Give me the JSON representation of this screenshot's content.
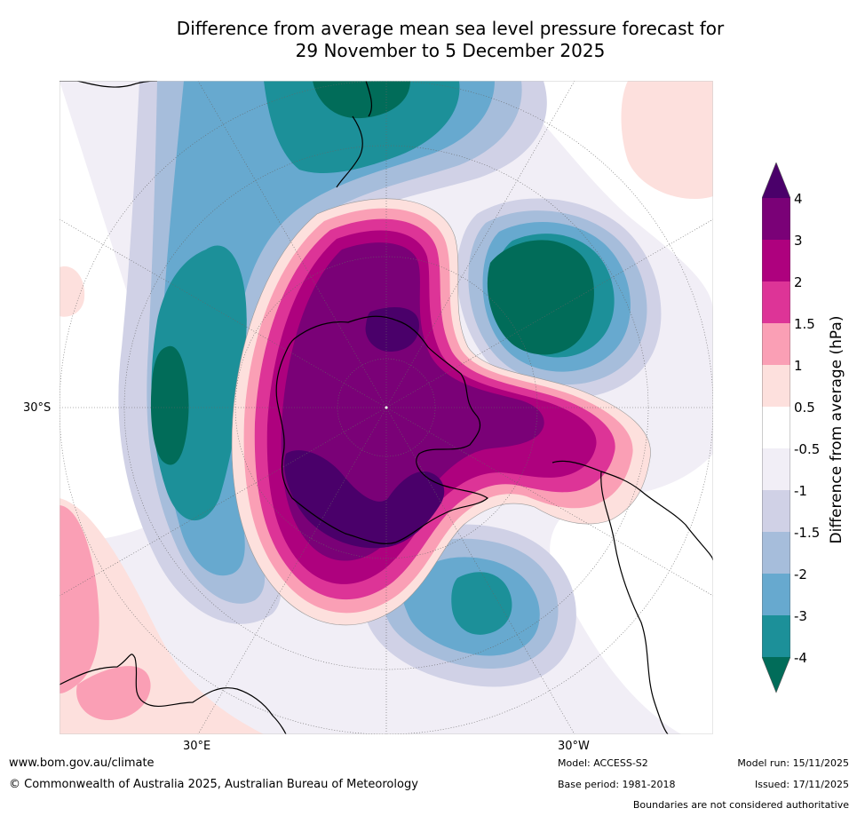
{
  "title": {
    "line1": "Difference from average mean sea level pressure forecast for",
    "line2": "29 November to 5 December 2025"
  },
  "map": {
    "projection": "south-polar-stereographic",
    "latitude_label": "30°S",
    "longitude_labels": [
      "30°E",
      "30°W"
    ]
  },
  "colorbar": {
    "title": "Difference from average (hPa)",
    "ticks": [
      "4",
      "3",
      "2",
      "1.5",
      "1",
      "0.5",
      "-0.5",
      "-1",
      "-1.5",
      "-2",
      "-3",
      "-4"
    ],
    "colors": {
      "gt4": "#4a006a",
      "3_4": "#7a0177",
      "2_3": "#ae017e",
      "1.5_2": "#dd3497",
      "1_1.5": "#fa9fb5",
      "0.5_1": "#fde0dd",
      "-0.5_0.5": "#ffffff",
      "-1_-0.5": "#f1eef6",
      "-1.5_-1": "#d0d1e6",
      "-2_-1.5": "#a6bddb",
      "-3_-2": "#67a9cf",
      "-4_-3": "#1c9099",
      "lt-4": "#016c59"
    }
  },
  "footer": {
    "website": "www.bom.gov.au/climate",
    "copyright": "© Commonwealth of Australia 2025, Australian Bureau of Meteorology",
    "model": "Model: ACCESS-S2",
    "base_period": "Base period: 1981-2018",
    "model_run": "Model run: 15/11/2025",
    "issued": "Issued: 17/11/2025",
    "disclaimer": "Boundaries are not considered authoritative"
  }
}
